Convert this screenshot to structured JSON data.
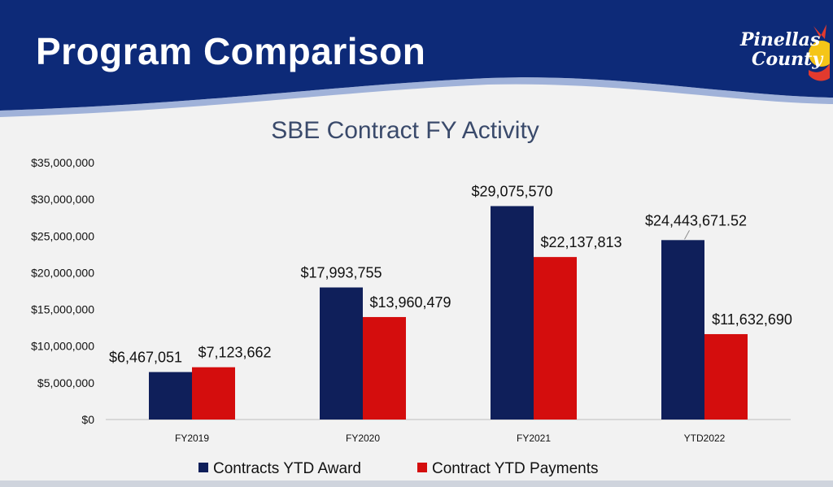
{
  "slide": {
    "title": "Program Comparison",
    "logo_line1": "Pinellas",
    "logo_line2": "County"
  },
  "colors": {
    "banner": "#0d2a78",
    "award": "#0f1f5a",
    "payments": "#d40d0d"
  },
  "chart_data": {
    "type": "bar",
    "title": "SBE Contract FY Activity",
    "categories": [
      "FY2019",
      "FY2020",
      "FY2021",
      "YTD2022"
    ],
    "series": [
      {
        "name": "Contracts YTD Award",
        "values": [
          6467051,
          17993755,
          29075570,
          24443671.52
        ],
        "labels": [
          "$6,467,051",
          "$17,993,755",
          "$29,075,570",
          "$24,443,671.52"
        ]
      },
      {
        "name": "Contract YTD Payments",
        "values": [
          7123662,
          13960479,
          22137813,
          11632690
        ],
        "labels": [
          "$7,123,662",
          "$13,960,479",
          "$22,137,813",
          "$11,632,690"
        ]
      }
    ],
    "ylim": [
      0,
      35000000
    ],
    "ytick_labels": [
      "$0",
      "$5,000,000",
      "$10,000,000",
      "$15,000,000",
      "$20,000,000",
      "$25,000,000",
      "$30,000,000",
      "$35,000,000"
    ],
    "grid": false,
    "legend": "bottom"
  }
}
